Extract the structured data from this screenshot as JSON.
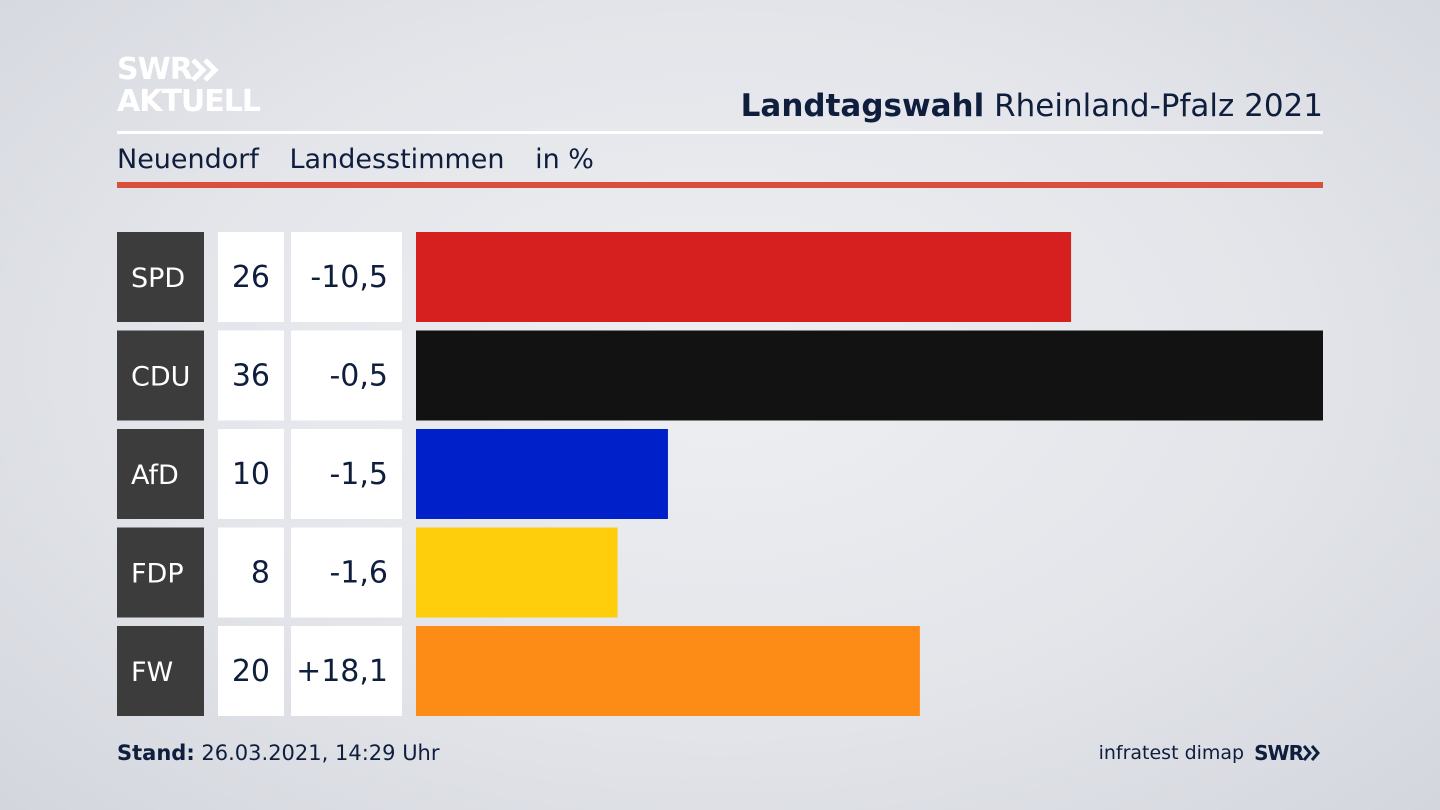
{
  "brand": {
    "logo_line1": "SWR",
    "logo_line2": "AKTUELL",
    "footer_source": "infratest dimap",
    "footer_logo": "SWR"
  },
  "header": {
    "title_bold": "Landtagswahl",
    "title_rest": "Rheinland-Pfalz 2021",
    "place": "Neuendorf",
    "vote_type": "Landesstimmen",
    "unit": "in %"
  },
  "footer": {
    "stand_label": "Stand:",
    "stand_value": "26.03.2021, 14:29 Uhr"
  },
  "colors": {
    "accent_rule": "#d8503b",
    "label_box": "#3c3c3c",
    "text": "#0e1e3c"
  },
  "chart_data": {
    "type": "bar",
    "orientation": "horizontal",
    "categories": [
      "SPD",
      "CDU",
      "AfD",
      "FDP",
      "FW"
    ],
    "values": [
      26,
      36,
      10,
      8,
      20
    ],
    "changes": [
      "-10,5",
      "-0,5",
      "-1,5",
      "-1,6",
      "+18,1"
    ],
    "colors": [
      "#d61f1f",
      "#121212",
      "#0021c9",
      "#fecd0b",
      "#fd8c17"
    ],
    "xlim": [
      0,
      36
    ]
  }
}
